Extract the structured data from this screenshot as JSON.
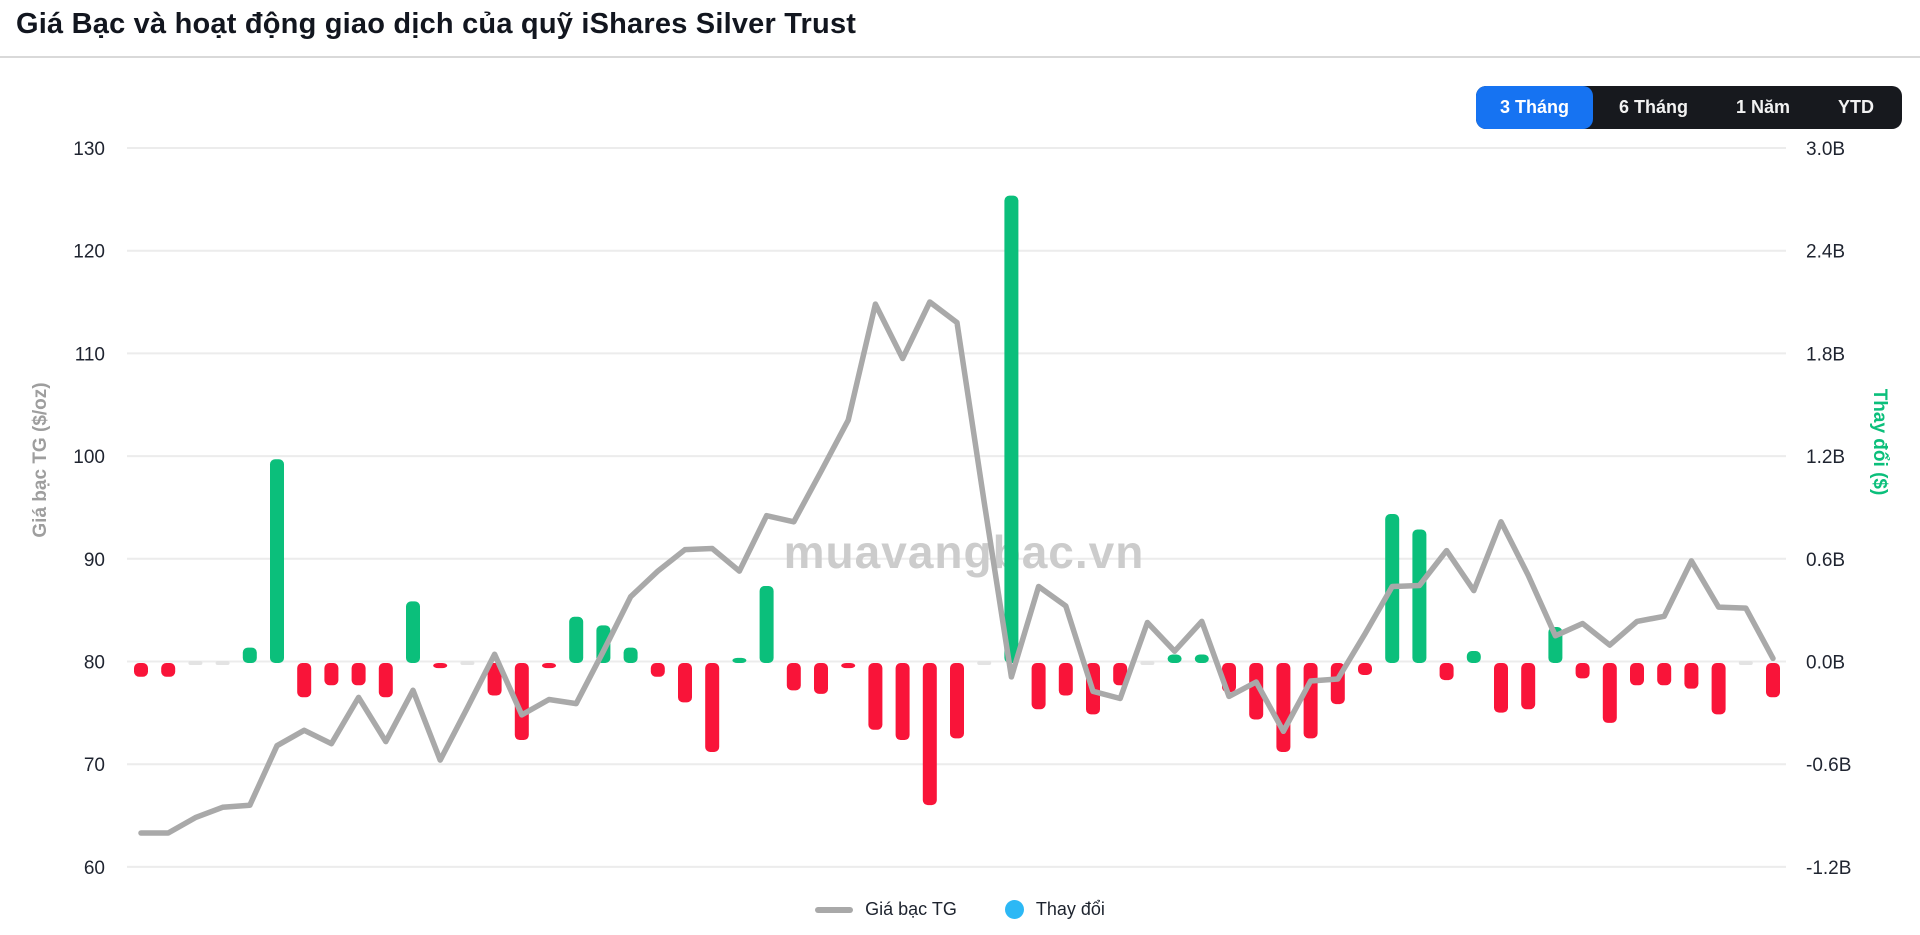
{
  "header": {
    "title": "Giá Bạc và hoạt động giao dịch của quỹ iShares Silver Trust",
    "range_buttons": [
      {
        "label": "3 Tháng",
        "active": true
      },
      {
        "label": "6 Tháng",
        "active": false
      },
      {
        "label": "1 Năm",
        "active": false
      },
      {
        "label": "YTD",
        "active": false
      }
    ]
  },
  "colors": {
    "accent_blue": "#1673f2",
    "bar_positive": "#0bbf7b",
    "bar_negative": "#f91439",
    "bar_zero": "#e3e3e3",
    "price_line": "#a9a9a9",
    "legend_dot": "#2cb8f5",
    "gridline": "#ececec",
    "tick_text": "#1f2430",
    "left_axis_title_color": "#9e9e9e",
    "right_axis_title_color": "#0bbf7b",
    "watermark_color": "#cccccc",
    "button_bg": "#17191e"
  },
  "chart_data": {
    "type": "bar",
    "subtype": "combo-line-bar",
    "title": "Giá Bạc và hoạt động giao dịch của quỹ iShares Silver Trust",
    "watermark": "muavangbac.vn",
    "left_axis": {
      "title": "Giá bạc TG ($/oz)",
      "ticks": [
        "130",
        "120",
        "110",
        "100",
        "90",
        "80",
        "70",
        "60"
      ],
      "range": [
        60,
        130
      ]
    },
    "right_axis": {
      "title": "Thay đổi ($)",
      "ticks": [
        "3.0B",
        "2.4B",
        "1.8B",
        "1.2B",
        "0.6B",
        "0.0B",
        "-0.6B",
        "-1.2B"
      ],
      "range": [
        -1.2,
        3.0
      ]
    },
    "grid": true,
    "legend_position": "bottom-center",
    "series": [
      {
        "name": "Giá bạc TG",
        "type": "line",
        "axis": "left",
        "values": [
          63.3,
          63.3,
          64.8,
          65.8,
          66.0,
          71.8,
          73.3,
          72.0,
          76.5,
          72.2,
          77.2,
          70.4,
          75.5,
          80.7,
          74.8,
          76.3,
          75.9,
          81.0,
          86.3,
          88.8,
          90.9,
          91.0,
          88.8,
          94.2,
          93.6,
          98.5,
          103.5,
          114.8,
          109.5,
          115.0,
          113.0,
          95.5,
          78.5,
          87.3,
          85.4,
          77.1,
          76.4,
          83.8,
          81.0,
          83.9,
          76.6,
          78.0,
          73.2,
          78.1,
          78.3,
          82.7,
          87.3,
          87.4,
          90.8,
          86.9,
          93.6,
          88.4,
          82.5,
          83.7,
          81.6,
          83.9,
          84.4,
          89.8,
          85.3,
          85.2,
          80.3
        ]
      },
      {
        "name": "Thay đổi",
        "type": "bar",
        "axis": "right",
        "unit": "B",
        "values": [
          -0.08,
          -0.08,
          0.0,
          0.0,
          0.09,
          1.19,
          -0.2,
          -0.13,
          -0.13,
          -0.2,
          0.36,
          -0.03,
          0.0,
          -0.19,
          -0.45,
          -0.03,
          0.27,
          0.22,
          0.09,
          -0.08,
          -0.23,
          -0.52,
          0.03,
          0.45,
          -0.16,
          -0.18,
          -0.03,
          -0.39,
          -0.45,
          -0.83,
          -0.44,
          0.0,
          2.73,
          -0.27,
          -0.19,
          -0.3,
          -0.13,
          0.0,
          0.05,
          0.05,
          -0.17,
          -0.33,
          -0.52,
          -0.44,
          -0.24,
          -0.07,
          0.87,
          0.78,
          -0.1,
          0.07,
          -0.29,
          -0.27,
          0.21,
          -0.09,
          -0.35,
          -0.13,
          -0.13,
          -0.15,
          -0.3,
          0.0,
          -0.2
        ]
      }
    ],
    "legend": [
      {
        "label": "Giá bạc TG",
        "marker": "line"
      },
      {
        "label": "Thay đổi",
        "marker": "dot"
      }
    ]
  }
}
